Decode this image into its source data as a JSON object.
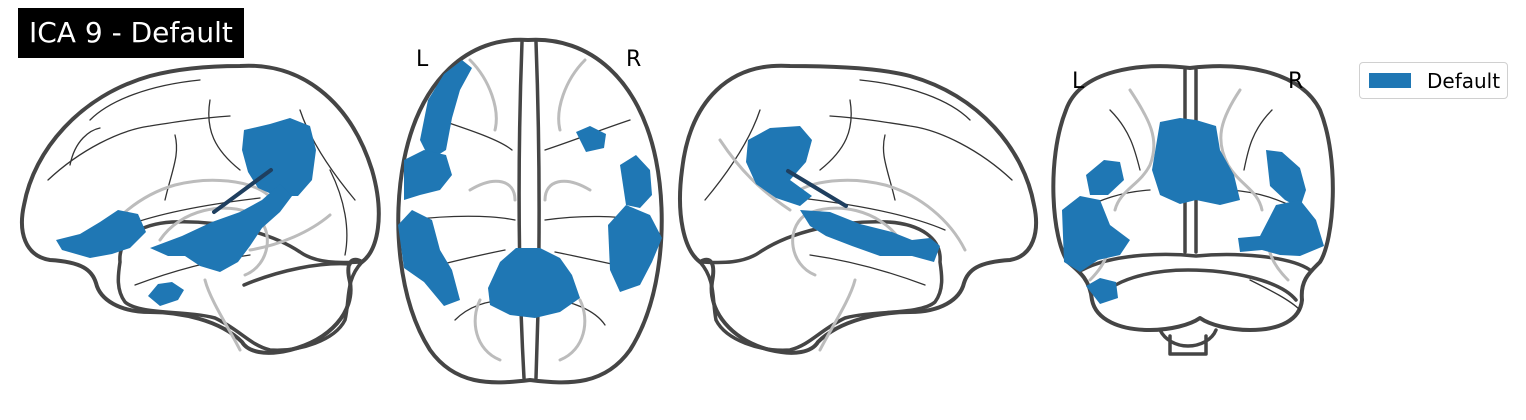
{
  "title": "ICA 9 - Default",
  "views": {
    "axial": {
      "left_label": "L",
      "right_label": "R"
    },
    "coronal": {
      "left_label": "L",
      "right_label": "R"
    }
  },
  "legend": {
    "label": "Default",
    "color": "#1f77b4"
  },
  "colors": {
    "network": "#1f77b4",
    "outline": "#454545",
    "deep_structures": "#bcbcbc"
  }
}
